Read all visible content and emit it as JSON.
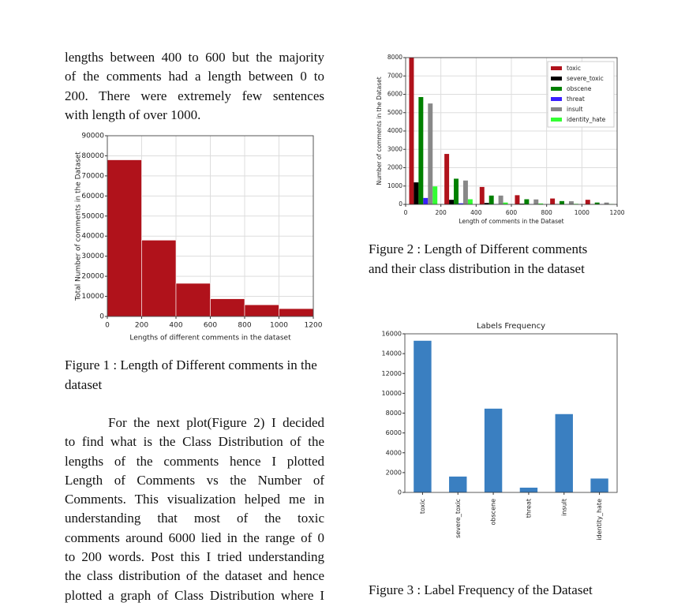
{
  "paragraphs": [
    {
      "lines": [
        "lengths between 400 to 600 but the majority",
        "of the comments had a length between 0 to",
        "200. There were extremely few sentences",
        "with length of over 1000."
      ]
    },
    {
      "lines": [
        "For the next plot(Figure 2) I decided",
        "to find what is the Class Distribution of the",
        "lengths of the comments hence I plotted",
        "Length of Comments vs the Number of",
        "Comments. This visualization helped me in",
        "understanding that most of the toxic",
        "comments around 6000 lied in the range of 0",
        "to 200 words. Post this I tried understanding",
        "the class distribution of the dataset and hence",
        "plotted a graph of Class Distribution where I"
      ]
    }
  ],
  "chart_data": [
    {
      "type": "histogram",
      "caption": "Figure 1 : Length of Different comments in the dataset",
      "xlabel": "Lengths of different comments in the dataset",
      "ylabel": "Total Number of comments in the Dataset",
      "bins": [
        0,
        200,
        400,
        600,
        800,
        1000,
        1200
      ],
      "values": [
        78000,
        38000,
        16500,
        8800,
        5800,
        3900
      ],
      "color": "#b0121b",
      "xlim": [
        0,
        1200
      ],
      "xticks": [
        0,
        200,
        400,
        600,
        800,
        1000,
        1200
      ],
      "ylim": [
        0,
        90000
      ],
      "yticks": [
        0,
        10000,
        20000,
        30000,
        40000,
        50000,
        60000,
        70000,
        80000,
        90000
      ],
      "grid": true
    },
    {
      "type": "histogram",
      "caption": "Figure 2 : Length of Different comments and their class distribution in the dataset",
      "xlabel": "Length of comments in the Dataset",
      "ylabel": "Number of comments in the Dataset",
      "bins": [
        0,
        200,
        400,
        600,
        800,
        1000,
        1200
      ],
      "series": [
        {
          "name": "toxic",
          "color": "#b0121b",
          "values": [
            8000,
            2750,
            950,
            500,
            320,
            250
          ]
        },
        {
          "name": "severe_toxic",
          "color": "#000000",
          "values": [
            1200,
            250,
            80,
            40,
            20,
            10
          ]
        },
        {
          "name": "obscene",
          "color": "#008000",
          "values": [
            5850,
            1400,
            480,
            280,
            180,
            100
          ]
        },
        {
          "name": "threat",
          "color": "#3a1fff",
          "values": [
            350,
            60,
            20,
            10,
            5,
            5
          ]
        },
        {
          "name": "insult",
          "color": "#888888",
          "values": [
            5500,
            1300,
            480,
            270,
            170,
            100
          ]
        },
        {
          "name": "identity_hate",
          "color": "#33ff33",
          "values": [
            980,
            280,
            100,
            50,
            30,
            20
          ]
        }
      ],
      "xlim": [
        0,
        1200
      ],
      "xticks": [
        0,
        200,
        400,
        600,
        800,
        1000,
        1200
      ],
      "ylim": [
        0,
        8000
      ],
      "yticks": [
        0,
        1000,
        2000,
        3000,
        4000,
        5000,
        6000,
        7000,
        8000
      ],
      "grid": true,
      "legend": "upper right"
    },
    {
      "type": "bar",
      "caption": "Figure 3 : Label Frequency of the Dataset",
      "title": "Labels Frequency",
      "categories": [
        "toxic",
        "severe_toxic",
        "obscene",
        "threat",
        "insult",
        "identity_hate"
      ],
      "values": [
        15300,
        1600,
        8450,
        480,
        7900,
        1400
      ],
      "color": "#3a7fc1",
      "ylim": [
        0,
        16000
      ],
      "yticks": [
        0,
        2000,
        4000,
        6000,
        8000,
        10000,
        12000,
        14000,
        16000
      ],
      "grid": false
    }
  ]
}
